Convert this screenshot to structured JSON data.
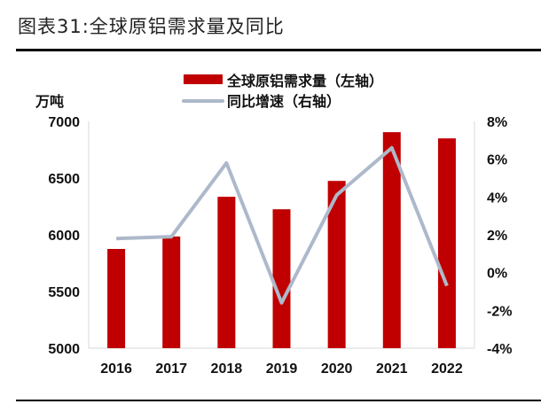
{
  "title": "图表31:全球原铝需求量及同比",
  "chart_data": {
    "type": "bar+line",
    "categories": [
      "2016",
      "2017",
      "2018",
      "2019",
      "2020",
      "2021",
      "2022"
    ],
    "series": [
      {
        "name": "全球原铝需求量（左轴）",
        "type": "bar",
        "axis": "left",
        "color": "#C00000",
        "values": [
          5875,
          5985,
          6335,
          6225,
          6475,
          6905,
          6850
        ]
      },
      {
        "name": "同比增速（右轴）",
        "type": "line",
        "axis": "right",
        "color": "#ADB9CA",
        "values": [
          1.8,
          1.9,
          5.8,
          -1.6,
          4.1,
          6.6,
          -0.7
        ]
      }
    ],
    "left_axis": {
      "label": "万吨",
      "ylim": [
        5000,
        7000
      ],
      "ticks": [
        5000,
        5500,
        6000,
        6500,
        7000
      ],
      "tick_labels": [
        "5000",
        "5500",
        "6000",
        "6500",
        "7000"
      ]
    },
    "right_axis": {
      "ylim": [
        -4,
        8
      ],
      "ticks": [
        -4,
        -2,
        0,
        2,
        4,
        6,
        8
      ],
      "tick_labels": [
        "-4%",
        "-2%",
        "0%",
        "2%",
        "4%",
        "6%",
        "8%"
      ]
    },
    "legend": "top-center",
    "grid": false
  }
}
